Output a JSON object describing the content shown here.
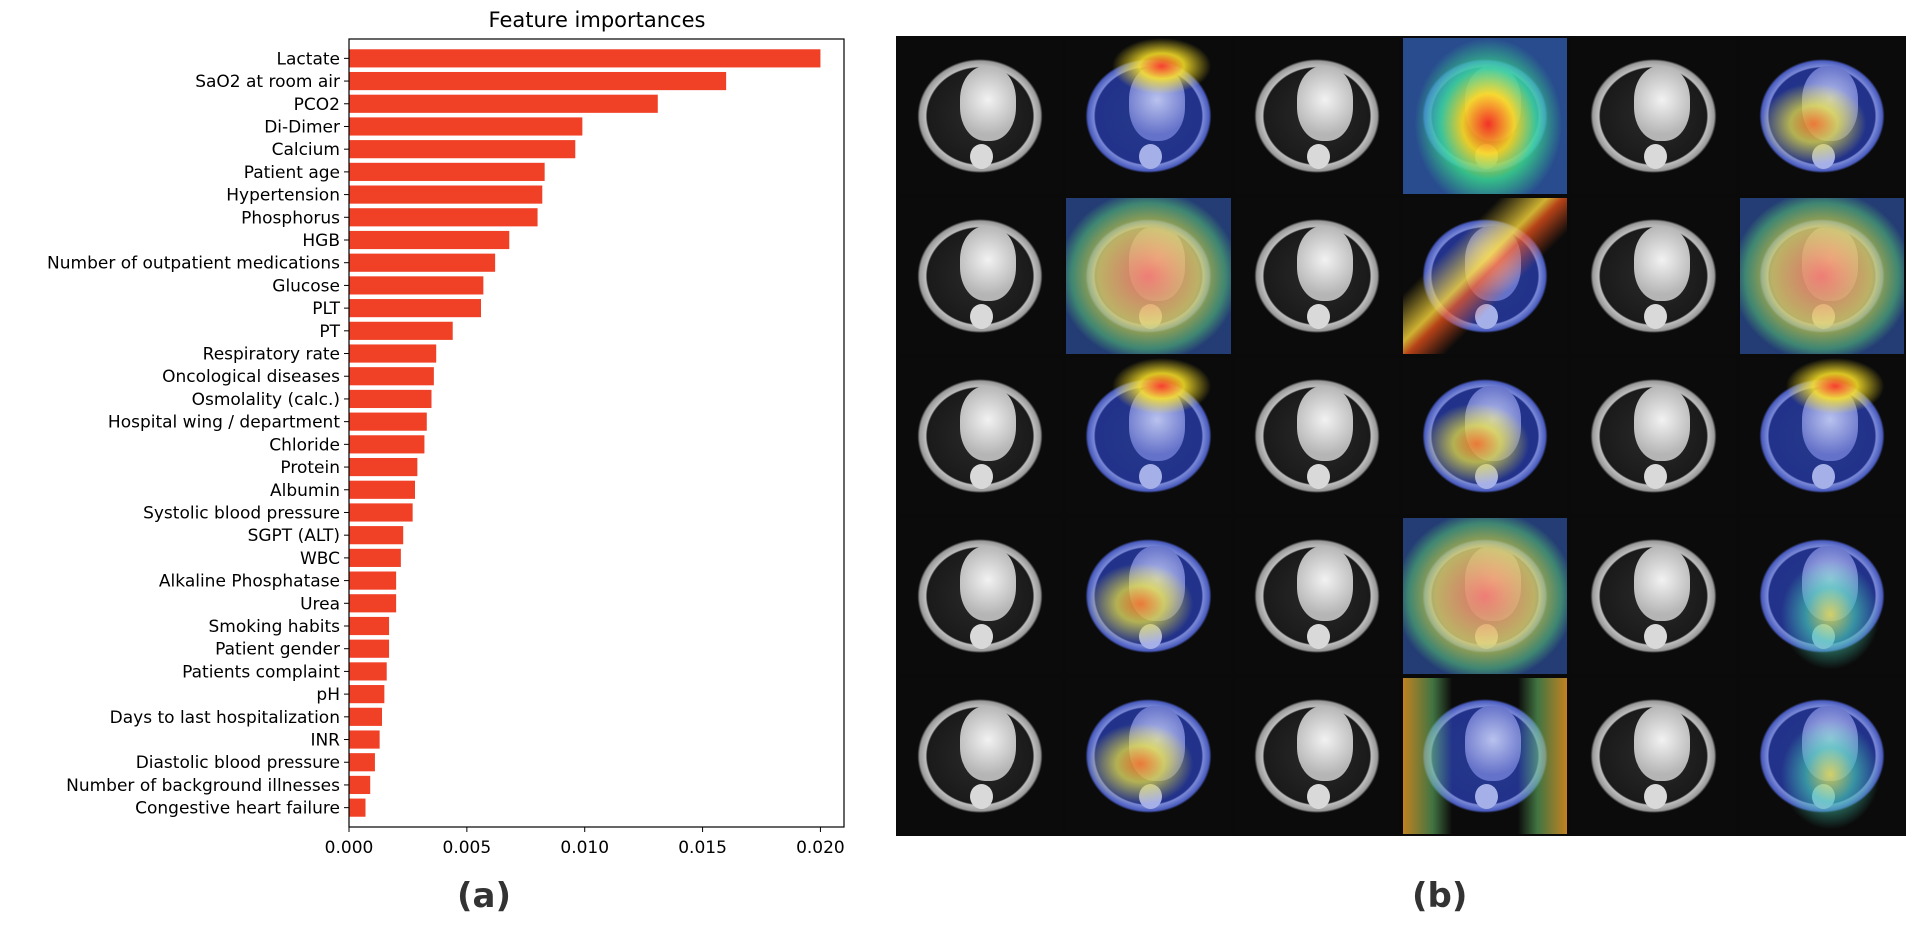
{
  "panel_labels": {
    "a": "(a)",
    "b": "(b)"
  },
  "colors": {
    "bar": "#f04127",
    "axis": "#000000",
    "panel_label": "#333333"
  },
  "chart_data": {
    "type": "bar",
    "orientation": "horizontal",
    "title": "Feature importances",
    "xlabel": "",
    "ylabel": "",
    "xlim": [
      0.0,
      0.021
    ],
    "xticks": [
      "0.000",
      "0.005",
      "0.010",
      "0.015",
      "0.020"
    ],
    "xtick_values": [
      0.0,
      0.005,
      0.01,
      0.015,
      0.02
    ],
    "grid": false,
    "categories": [
      "Lactate",
      "SaO2 at room air",
      "PCO2",
      "Di-Dimer",
      "Calcium",
      "Patient age",
      "Hypertension",
      "Phosphorus",
      "HGB",
      "Number of outpatient medications",
      "Glucose",
      "PLT",
      "PT",
      "Respiratory rate",
      "Oncological diseases",
      "Osmolality (calc.)",
      "Hospital wing / department",
      "Chloride",
      "Protein",
      "Albumin",
      "Systolic blood pressure",
      "SGPT (ALT)",
      "WBC",
      "Alkaline Phosphatase",
      "Urea",
      "Smoking habits",
      "Patient gender",
      "Patients complaint",
      "pH ",
      "Days to last hospitalization",
      "INR",
      "Diastolic blood pressure",
      "Number of background illnesses",
      "Congestive heart failure"
    ],
    "values": [
      0.02,
      0.016,
      0.0131,
      0.0099,
      0.0096,
      0.0083,
      0.0082,
      0.008,
      0.0068,
      0.0062,
      0.0057,
      0.0056,
      0.0044,
      0.0037,
      0.0036,
      0.0035,
      0.0033,
      0.0032,
      0.0029,
      0.0028,
      0.0027,
      0.0023,
      0.0022,
      0.002,
      0.002,
      0.0017,
      0.0017,
      0.0016,
      0.0015,
      0.0014,
      0.0013,
      0.0011,
      0.0009,
      0.0007
    ]
  },
  "image_grid": {
    "rows": 5,
    "cols": 6,
    "tiles": [
      {
        "kind": "ct"
      },
      {
        "kind": "heat",
        "heat": "top"
      },
      {
        "kind": "ct"
      },
      {
        "kind": "heat",
        "heat": "hot-center"
      },
      {
        "kind": "ct"
      },
      {
        "kind": "heat",
        "heat": "mid"
      },
      {
        "kind": "ct"
      },
      {
        "kind": "heat",
        "heat": "warm-wide"
      },
      {
        "kind": "ct"
      },
      {
        "kind": "heat",
        "heat": "diag"
      },
      {
        "kind": "ct"
      },
      {
        "kind": "heat",
        "heat": "warm-wide"
      },
      {
        "kind": "ct"
      },
      {
        "kind": "heat",
        "heat": "top"
      },
      {
        "kind": "ct"
      },
      {
        "kind": "heat",
        "heat": "mid"
      },
      {
        "kind": "ct"
      },
      {
        "kind": "heat",
        "heat": "top"
      },
      {
        "kind": "ct"
      },
      {
        "kind": "heat",
        "heat": "mid"
      },
      {
        "kind": "ct"
      },
      {
        "kind": "heat",
        "heat": "warm-wide"
      },
      {
        "kind": "ct"
      },
      {
        "kind": "heat",
        "heat": "low"
      },
      {
        "kind": "ct"
      },
      {
        "kind": "heat",
        "heat": "mid"
      },
      {
        "kind": "ct"
      },
      {
        "kind": "heat",
        "heat": "sides"
      },
      {
        "kind": "ct"
      },
      {
        "kind": "heat",
        "heat": "low"
      }
    ]
  }
}
